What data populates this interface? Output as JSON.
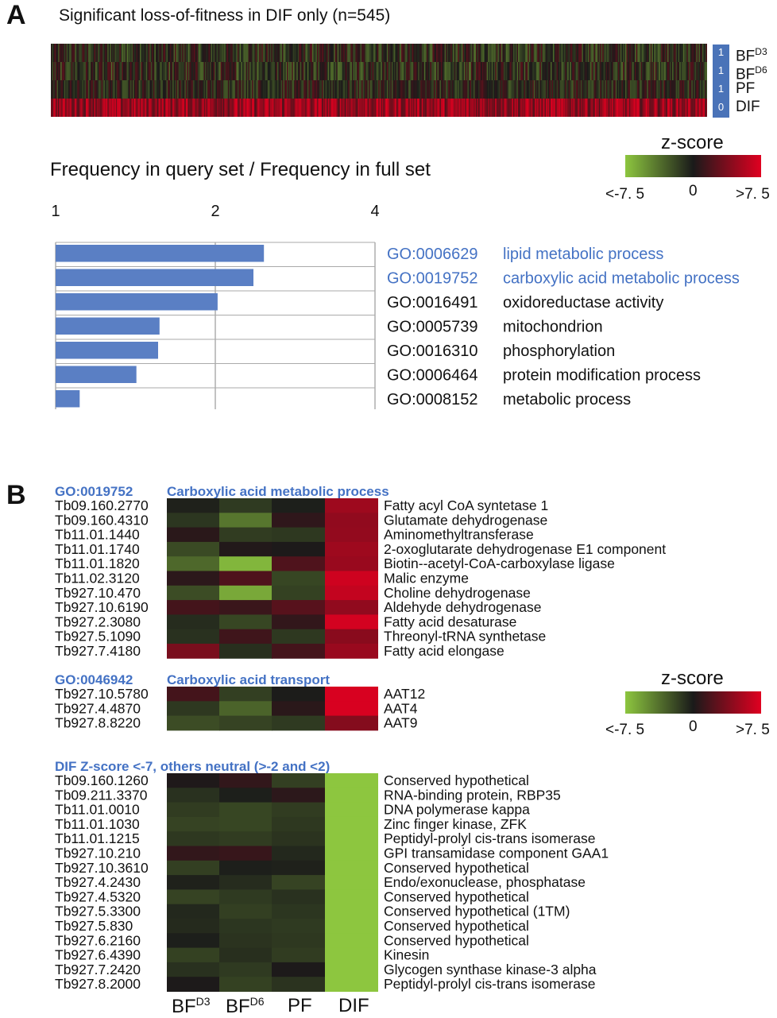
{
  "panel_a": {
    "letter": "A",
    "title": "Significant loss-of-fitness in DIF only (n=545)",
    "tracks": [
      {
        "badge": "1",
        "name": "BF",
        "sup": "D3"
      },
      {
        "badge": "1",
        "name": "BF",
        "sup": "D6"
      },
      {
        "badge": "1",
        "name": "PF",
        "sup": ""
      },
      {
        "badge": "0",
        "name": "DIF",
        "sup": ""
      }
    ],
    "freq_title": "Frequency in query set / Frequency in full set"
  },
  "legend": {
    "title": "z-score",
    "min_label": "<-7. 5",
    "mid_label": "0",
    "max_label": ">7. 5",
    "colors": [
      "#8dc63f",
      "#1a1a1a",
      "#e00020"
    ]
  },
  "chart_data": [
    {
      "type": "bar",
      "orientation": "horizontal",
      "title": "Frequency in query set / Frequency in full set",
      "xscale": "log2",
      "xlim": [
        1,
        4
      ],
      "xticks": [
        "1",
        "2",
        "4"
      ],
      "grid": true,
      "bar_color": "#5a7fc4",
      "categories": [
        {
          "id": "GO:0006629",
          "term": "lipid metabolic process",
          "highlight": true
        },
        {
          "id": "GO:0019752",
          "term": "carboxylic acid metabolic process",
          "highlight": true
        },
        {
          "id": "GO:0016491",
          "term": "oxidoreductase activity",
          "highlight": false
        },
        {
          "id": "GO:0005739",
          "term": "mitochondrion",
          "highlight": false
        },
        {
          "id": "GO:0016310",
          "term": "phosphorylation",
          "highlight": false
        },
        {
          "id": "GO:0006464",
          "term": "protein modification process",
          "highlight": false
        },
        {
          "id": "GO:0008152",
          "term": "metabolic process",
          "highlight": false
        }
      ],
      "values": [
        2.47,
        2.36,
        2.02,
        1.57,
        1.56,
        1.42,
        1.11
      ]
    },
    {
      "type": "heatmap",
      "title": "Carboxylic acid metabolic process",
      "go_id": "GO:0019752",
      "columns": [
        "BF D3",
        "BF D6",
        "PF",
        "DIF"
      ],
      "rows": [
        {
          "gene": "Tb09.160.2770",
          "desc": "Fatty acyl CoA syntetase 1",
          "z": [
            -0.3,
            -1.4,
            -0.2,
            5.0
          ]
        },
        {
          "gene": "Tb09.160.4310",
          "desc": "Glutamate dehydrogenase",
          "z": [
            -1.2,
            -4.0,
            0.8,
            4.5
          ]
        },
        {
          "gene": "Tb11.01.1440",
          "desc": "Aminomethyltransferase",
          "z": [
            0.6,
            -1.5,
            -1.3,
            4.6
          ]
        },
        {
          "gene": "Tb11.01.1740",
          "desc": "2-oxoglutarate dehydrogenase E1 component",
          "z": [
            -2.1,
            0.3,
            0.1,
            5.0
          ]
        },
        {
          "gene": "Tb11.01.1820",
          "desc": "Biotin--acetyl-CoA-carboxylase ligase",
          "z": [
            -3.4,
            -6.8,
            2.0,
            4.8
          ]
        },
        {
          "gene": "Tb11.02.3120",
          "desc": "Malic enzyme",
          "z": [
            0.7,
            2.0,
            -1.9,
            6.8
          ]
        },
        {
          "gene": "Tb927.10.470",
          "desc": "Choline dehydrogenase",
          "z": [
            -2.2,
            -6.2,
            -1.7,
            6.4
          ]
        },
        {
          "gene": "Tb927.10.6190",
          "desc": "Aldehyde dehydrogenase",
          "z": [
            1.6,
            1.2,
            2.3,
            4.5
          ]
        },
        {
          "gene": "Tb927.2.3080",
          "desc": "Fatty acid desaturase",
          "z": [
            -0.8,
            -1.9,
            0.9,
            7.0
          ]
        },
        {
          "gene": "Tb927.5.1090",
          "desc": "Threonyl-tRNA synthetase",
          "z": [
            -1.0,
            1.4,
            -1.3,
            4.2
          ]
        },
        {
          "gene": "Tb927.7.4180",
          "desc": "Fatty acid elongase",
          "z": [
            3.6,
            -0.9,
            1.6,
            4.8
          ]
        }
      ]
    },
    {
      "type": "heatmap",
      "title": "Carboxylic acid transport",
      "go_id": "GO:0046942",
      "columns": [
        "BF D3",
        "BF D6",
        "PF",
        "DIF"
      ],
      "rows": [
        {
          "gene": "Tb927.10.5780",
          "desc": "AAT12",
          "z": [
            1.6,
            -1.6,
            -0.1,
            7.2
          ]
        },
        {
          "gene": "Tb927.4.4870",
          "desc": "AAT4",
          "z": [
            -1.3,
            -3.2,
            0.6,
            7.2
          ]
        },
        {
          "gene": "Tb927.8.8220",
          "desc": "AAT9",
          "z": [
            -2.2,
            -1.8,
            -1.4,
            4.0
          ]
        }
      ]
    },
    {
      "type": "heatmap",
      "title": "DIF Z-score <-7, others neutral (>-2 and <2)",
      "columns": [
        "BF D3",
        "BF D6",
        "PF",
        "DIF"
      ],
      "rows": [
        {
          "gene": "Tb09.160.1260",
          "desc": "Conserved hypothetical",
          "z": [
            0.2,
            0.9,
            -1.6,
            -7.5
          ]
        },
        {
          "gene": "Tb09.211.3370",
          "desc": "RNA-binding protein, RBP35",
          "z": [
            -1.0,
            -0.2,
            0.7,
            -7.5
          ]
        },
        {
          "gene": "Tb11.01.0010",
          "desc": "DNA polymerase kappa",
          "z": [
            -1.5,
            -1.9,
            -1.5,
            -7.5
          ]
        },
        {
          "gene": "Tb11.01.1030",
          "desc": "Zinc finger kinase, ZFK",
          "z": [
            -1.8,
            -1.9,
            -1.3,
            -7.5
          ]
        },
        {
          "gene": "Tb11.01.1215",
          "desc": "Peptidyl-prolyl cis-trans isomerase",
          "z": [
            -1.3,
            -1.5,
            -1.1,
            -7.5
          ]
        },
        {
          "gene": "Tb927.10.210",
          "desc": "GPI transamidase component GAA1",
          "z": [
            0.9,
            1.1,
            -0.6,
            -7.5
          ]
        },
        {
          "gene": "Tb927.10.3610",
          "desc": "Conserved hypothetical",
          "z": [
            -1.6,
            -0.2,
            -0.3,
            -7.5
          ]
        },
        {
          "gene": "Tb927.4.2430",
          "desc": "Endo/exonuclease, phosphatase",
          "z": [
            -0.3,
            -0.8,
            -1.8,
            -7.5
          ]
        },
        {
          "gene": "Tb927.4.5320",
          "desc": "Conserved hypothetical",
          "z": [
            -1.8,
            -1.4,
            -1.0,
            -7.5
          ]
        },
        {
          "gene": "Tb927.5.3300",
          "desc": "Conserved hypothetical (1TM)",
          "z": [
            -0.6,
            -1.6,
            -1.2,
            -7.5
          ]
        },
        {
          "gene": "Tb927.5.830",
          "desc": "Conserved hypothetical",
          "z": [
            -0.7,
            -1.2,
            -1.4,
            -7.5
          ]
        },
        {
          "gene": "Tb927.6.2160",
          "desc": "Conserved hypothetical",
          "z": [
            -0.2,
            -1.1,
            -1.3,
            -7.5
          ]
        },
        {
          "gene": "Tb927.6.4390",
          "desc": "Kinesin",
          "z": [
            -1.7,
            -0.9,
            -1.5,
            -7.5
          ]
        },
        {
          "gene": "Tb927.7.2420",
          "desc": "Glycogen synthase kinase-3 alpha",
          "z": [
            -1.0,
            -1.4,
            0.1,
            -7.5
          ]
        },
        {
          "gene": "Tb927.8.2000",
          "desc": "Peptidyl-prolyl cis-trans isomerase",
          "z": [
            0.1,
            -1.7,
            -1.1,
            -7.5
          ]
        }
      ]
    }
  ],
  "panel_b": {
    "letter": "B",
    "col_headers": [
      {
        "base": "BF",
        "sup": "D3"
      },
      {
        "base": "BF",
        "sup": "D6"
      },
      {
        "base": "PF",
        "sup": ""
      },
      {
        "base": "DIF",
        "sup": ""
      }
    ]
  }
}
